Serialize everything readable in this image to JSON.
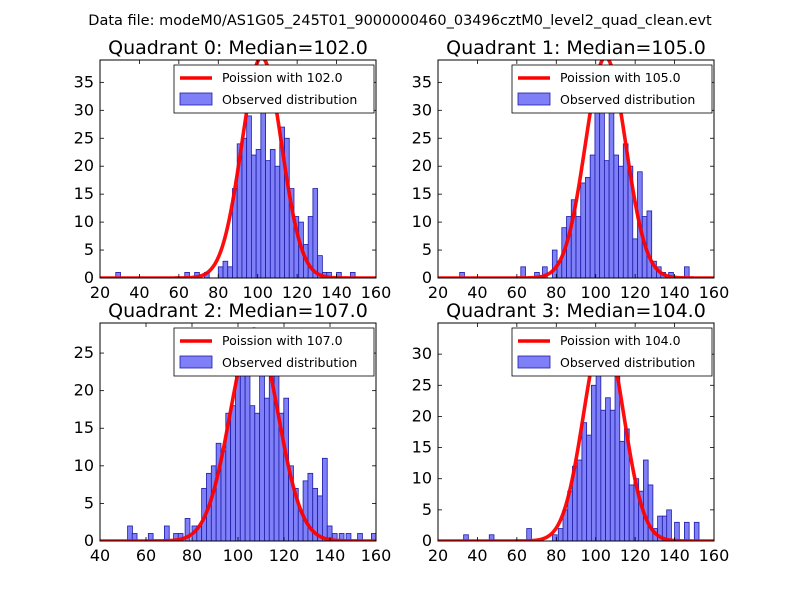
{
  "figure": {
    "suptitle": "Data file: modeM0/AS1G05_245T01_9000000460_03496cztM0_level2_quad_clean.evt"
  },
  "style": {
    "hist_fill": "#7f7ff7",
    "hist_edge": "#1c1ca8",
    "curve_color": "#ff0000",
    "bg": "#ffffff"
  },
  "chart_data": [
    {
      "type": "bar",
      "title": "Quadrant 0: Median=102.0",
      "legend": [
        "Poission with 102.0",
        "Observed distribution"
      ],
      "legend_position": "top-right",
      "xlim": [
        20,
        160
      ],
      "ylim": [
        0,
        39
      ],
      "xticks": [
        20,
        40,
        60,
        80,
        100,
        120,
        140,
        160
      ],
      "yticks": [
        0,
        5,
        10,
        15,
        20,
        25,
        30,
        35
      ],
      "bin_width": 2.4,
      "bins": [
        [
          28,
          1
        ],
        [
          63,
          1
        ],
        [
          68,
          1
        ],
        [
          73,
          1
        ],
        [
          80,
          2
        ],
        [
          82.4,
          3
        ],
        [
          84.8,
          2
        ],
        [
          87.2,
          16
        ],
        [
          89.6,
          24
        ],
        [
          92,
          25
        ],
        [
          94.4,
          29
        ],
        [
          96.8,
          22
        ],
        [
          99.2,
          23
        ],
        [
          101.6,
          34
        ],
        [
          104,
          21
        ],
        [
          106.4,
          23
        ],
        [
          108.8,
          20
        ],
        [
          111.2,
          27
        ],
        [
          113.6,
          25
        ],
        [
          116,
          16
        ],
        [
          118.4,
          11
        ],
        [
          120.8,
          10
        ],
        [
          123.2,
          6
        ],
        [
          125.6,
          11
        ],
        [
          128,
          16
        ],
        [
          130.4,
          4
        ],
        [
          132.8,
          1
        ],
        [
          135,
          1
        ],
        [
          140,
          1
        ],
        [
          147,
          1
        ]
      ],
      "poisson_mean": 102.0,
      "poisson_peak": 39.5
    },
    {
      "type": "bar",
      "title": "Quadrant 1: Median=105.0",
      "legend": [
        "Poission with 105.0",
        "Observed distribution"
      ],
      "legend_position": "top-right",
      "xlim": [
        20,
        160
      ],
      "ylim": [
        0,
        39
      ],
      "xticks": [
        20,
        40,
        60,
        80,
        100,
        120,
        140,
        160
      ],
      "yticks": [
        0,
        5,
        10,
        15,
        20,
        25,
        30,
        35
      ],
      "bin_width": 2.4,
      "bins": [
        [
          31,
          1
        ],
        [
          62,
          2
        ],
        [
          69,
          1
        ],
        [
          73,
          2
        ],
        [
          78,
          5
        ],
        [
          80.4,
          3
        ],
        [
          82.8,
          9
        ],
        [
          85.2,
          11
        ],
        [
          87.6,
          14
        ],
        [
          90,
          11
        ],
        [
          92.4,
          17
        ],
        [
          94.8,
          18
        ],
        [
          97.2,
          22
        ],
        [
          99.6,
          30
        ],
        [
          102,
          32
        ],
        [
          104.4,
          21
        ],
        [
          106.8,
          37
        ],
        [
          109.2,
          22
        ],
        [
          111.6,
          20
        ],
        [
          114,
          24
        ],
        [
          116.4,
          20
        ],
        [
          118.8,
          7
        ],
        [
          121.2,
          19
        ],
        [
          123.6,
          11
        ],
        [
          126,
          12
        ],
        [
          128.4,
          3
        ],
        [
          130.8,
          2
        ],
        [
          133,
          1
        ],
        [
          137,
          1
        ],
        [
          145,
          2
        ]
      ],
      "poisson_mean": 105.0,
      "poisson_peak": 39.5
    },
    {
      "type": "bar",
      "title": "Quadrant 2: Median=107.0",
      "legend": [
        "Poission with 107.0",
        "Observed distribution"
      ],
      "legend_position": "top-right",
      "xlim": [
        40,
        160
      ],
      "ylim": [
        0,
        29
      ],
      "xticks": [
        40,
        60,
        80,
        100,
        120,
        140,
        160
      ],
      "yticks": [
        0,
        5,
        10,
        15,
        20,
        25
      ],
      "bin_width": 2.1,
      "bins": [
        [
          52,
          2
        ],
        [
          54,
          1
        ],
        [
          61,
          1
        ],
        [
          68,
          2
        ],
        [
          72,
          1
        ],
        [
          74,
          1
        ],
        [
          77,
          3
        ],
        [
          80,
          2
        ],
        [
          82.1,
          2
        ],
        [
          84.2,
          7
        ],
        [
          86.3,
          9
        ],
        [
          88.4,
          10
        ],
        [
          90.5,
          13
        ],
        [
          92.6,
          12
        ],
        [
          94.7,
          17
        ],
        [
          96.8,
          18
        ],
        [
          98.9,
          22
        ],
        [
          101,
          24
        ],
        [
          103.1,
          27
        ],
        [
          105.2,
          18
        ],
        [
          107.3,
          17
        ],
        [
          109.4,
          22
        ],
        [
          111.5,
          19
        ],
        [
          113.6,
          26
        ],
        [
          115.7,
          22
        ],
        [
          117.8,
          17
        ],
        [
          119.9,
          19
        ],
        [
          122,
          10
        ],
        [
          124.1,
          7
        ],
        [
          126.2,
          4
        ],
        [
          128.3,
          8
        ],
        [
          130.4,
          9
        ],
        [
          132.5,
          7
        ],
        [
          134.6,
          6
        ],
        [
          136.7,
          11
        ],
        [
          138.8,
          2
        ],
        [
          141,
          1
        ],
        [
          144,
          1
        ],
        [
          147,
          1
        ],
        [
          152,
          1
        ],
        [
          158,
          1
        ]
      ],
      "poisson_mean": 107.0,
      "poisson_peak": 28.2
    },
    {
      "type": "bar",
      "title": "Quadrant 3: Median=104.0",
      "legend": [
        "Poission with 104.0",
        "Observed distribution"
      ],
      "legend_position": "top-right",
      "xlim": [
        20,
        160
      ],
      "ylim": [
        0,
        35
      ],
      "xticks": [
        20,
        40,
        60,
        80,
        100,
        120,
        140,
        160
      ],
      "yticks": [
        0,
        5,
        10,
        15,
        20,
        25,
        30
      ],
      "bin_width": 2.4,
      "bins": [
        [
          33,
          1
        ],
        [
          46,
          1
        ],
        [
          65,
          2
        ],
        [
          78,
          1
        ],
        [
          81,
          2
        ],
        [
          83.4,
          5
        ],
        [
          85.8,
          8
        ],
        [
          88.2,
          12
        ],
        [
          90.6,
          13
        ],
        [
          93,
          19
        ],
        [
          95.4,
          17
        ],
        [
          97.8,
          25
        ],
        [
          100.2,
          29
        ],
        [
          102.6,
          21
        ],
        [
          105,
          23
        ],
        [
          107.4,
          21
        ],
        [
          109.8,
          27
        ],
        [
          112.2,
          16
        ],
        [
          114.6,
          18
        ],
        [
          117,
          9
        ],
        [
          119.4,
          10
        ],
        [
          121.8,
          8
        ],
        [
          124.2,
          13
        ],
        [
          126.6,
          9
        ],
        [
          129,
          2
        ],
        [
          131.4,
          4
        ],
        [
          133.8,
          4
        ],
        [
          136,
          5
        ],
        [
          140,
          3
        ],
        [
          145,
          3
        ],
        [
          150,
          3
        ]
      ],
      "poisson_mean": 104.0,
      "poisson_peak": 33.5
    }
  ]
}
